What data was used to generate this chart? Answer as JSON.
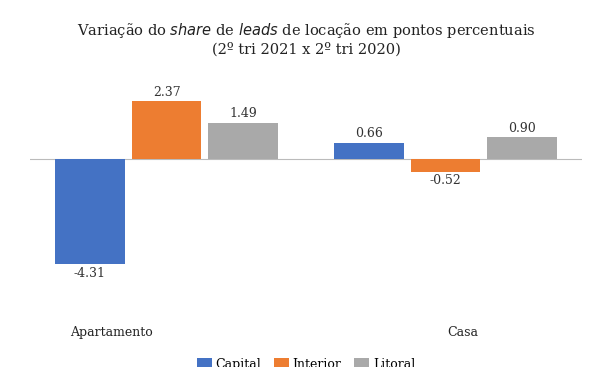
{
  "groups": [
    "Apartamento",
    "Casa"
  ],
  "series": [
    "Capital",
    "Interior",
    "Litoral"
  ],
  "values": {
    "Apartamento": [
      -4.31,
      2.37,
      1.49
    ],
    "Casa": [
      0.66,
      -0.52,
      0.9
    ]
  },
  "colors": [
    "#4472C4",
    "#ED7D31",
    "#A9A9A9"
  ],
  "title_line1": "Variação do $\\it{share}$ de $\\it{leads}$ de locação em pontos percentuais",
  "title_line2": "(2º tri 2021 x 2º tri 2020)",
  "bar_width": 0.2,
  "ylim": [
    -5.5,
    3.5
  ],
  "bg_color": "#FFFFFF",
  "bar_label_fontsize": 9,
  "title_fontsize": 10.5,
  "legend_fontsize": 9
}
